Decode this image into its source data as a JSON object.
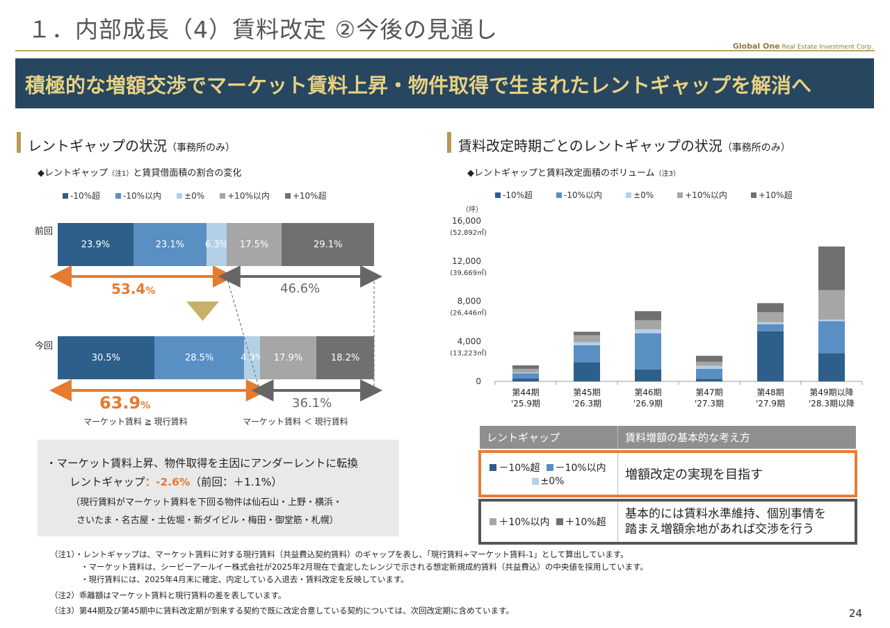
{
  "header": {
    "title": "１．内部成長（4）賃料改定 ②今後の見通し",
    "brand_bold": "Global One",
    "brand_rest": " Real Estate Investment Corp.",
    "banner": "積極的な増額交渉でマーケット賃料上昇・物件取得で生まれたレントギャップを解消へ"
  },
  "colors": {
    "gt_minus10": "#2d5f8a",
    "within_minus10": "#5a8fc3",
    "pm0": "#b3d0e7",
    "within_plus10": "#a6a6a6",
    "gt_plus10": "#707070",
    "accent_orange": "#e67a2e",
    "banner_bg": "#27465f"
  },
  "left": {
    "section_title": "レントギャップの状況",
    "section_title_small": "（事務所のみ）",
    "subhead": "◆レントギャップ",
    "subhead_note": "（注1）",
    "subhead_rest": "と賃貸借面積の割合の変化",
    "legend": [
      "-10%超",
      "-10%以内",
      "±0%",
      "+10%以内",
      "+10%超"
    ],
    "rows": [
      {
        "label": "前回",
        "values": [
          23.9,
          23.1,
          6.3,
          17.5,
          29.1
        ],
        "labels": [
          "23.9%",
          "23.1%",
          "6.3%",
          "17.5%",
          "29.1%"
        ]
      },
      {
        "label": "今回",
        "values": [
          30.5,
          28.5,
          4.9,
          17.9,
          18.2
        ],
        "labels": [
          "30.5%",
          "28.5%",
          "4.9%",
          "17.9%",
          "18.2%"
        ]
      }
    ],
    "prev_under_num": "53.4",
    "prev_over": "46.6%",
    "curr_under_num": "63.9",
    "curr_over": "36.1%",
    "pct_unit": "%",
    "cmp_under": "マーケット賃料 ≧ 現行賃料",
    "cmp_over": "マーケット賃料 ＜ 現行賃料",
    "summary": {
      "line1": "・マーケット賃料上昇、物件取得を主因にアンダーレントに転換",
      "line2_a": "レントギャップ",
      "line2_b": "：-2.6%",
      "line2_c": "（前回：＋1.1%）",
      "line3": "（現行賃料がマーケット賃料を下回る物件は仙石山・上野・横浜・",
      "line4": "さいたま・名古屋・土佐堀・新ダイビル・梅田・御堂筋・札幌）"
    }
  },
  "right": {
    "section_title": "賃料改定時期ごとのレントギャップの状況",
    "section_title_small": "（事務所のみ）",
    "subhead": "◆レントギャップと賃料改定面積のボリューム",
    "subhead_note": "（注3）",
    "unit": "（坪）"
  },
  "chart_data": {
    "type": "bar",
    "stacked": true,
    "categories": [
      "第44期\n'25.9期",
      "第45期\n'26.3期",
      "第46期\n'26.9期",
      "第47期\n'27.3期",
      "第48期\n'27.9期",
      "第49期以降\n'28.3期以降"
    ],
    "series": [
      {
        "name": "-10%超",
        "values": [
          300,
          1900,
          1200,
          250,
          5000,
          2800
        ]
      },
      {
        "name": "-10%以内",
        "values": [
          500,
          1700,
          3600,
          1000,
          700,
          3200
        ]
      },
      {
        "name": "±0%",
        "values": [
          100,
          300,
          400,
          300,
          200,
          150
        ]
      },
      {
        "name": "+10%以内",
        "values": [
          350,
          700,
          900,
          400,
          1000,
          2950
        ]
      },
      {
        "name": "+10%超",
        "values": [
          350,
          350,
          900,
          600,
          900,
          4350
        ]
      }
    ],
    "ylim": [
      0,
      16000
    ],
    "yticks": [
      0,
      4000,
      8000,
      12000,
      16000
    ],
    "ytick_labels": [
      "0",
      "4,000",
      "8,000",
      "12,000",
      "16,000"
    ],
    "ytick_sublabels": [
      "",
      "(13,223㎡)",
      "(26,446㎡)",
      "(39,669㎡)",
      "(52,892㎡)"
    ],
    "legend_position": "top"
  },
  "table": {
    "h1": "レントギャップ",
    "h2": "賃料増額の基本的な考え方",
    "r1_items": [
      "－10%超",
      "－10%以内",
      "±0%"
    ],
    "r1_text": "増額改定の実現を目指す",
    "r2_items": [
      "＋10%以内",
      "＋10%超"
    ],
    "r2_text_1": "基本的には賃料水準維持、個別事情を",
    "r2_text_2": "踏まえ増額余地があれば交渉を行う"
  },
  "notes": {
    "n1a": "（注1）・レントギャップは、マーケット賃料に対する現行賃料（共益費込契約賃料）のギャップを表し、「現行賃料÷マーケット賃料-1」として算出しています。",
    "n1b": "・マーケット賃料は、シービーアールイー株式会社が2025年2月現在で査定したレンジで示される想定新規成約賃料（共益費込）の中央値を採用しています。",
    "n1c": "・現行賃料には、2025年4月末に確定、内定している入退去・賃料改定を反映しています。",
    "n2": "（注2）乖離額はマーケット賃料と現行賃料の差を表しています。",
    "n3": "（注3）第44期及び第45期中に賃料改定期が到来する契約で既に改定合意している契約については、次回改定期に含めています。"
  },
  "page_number": "24"
}
